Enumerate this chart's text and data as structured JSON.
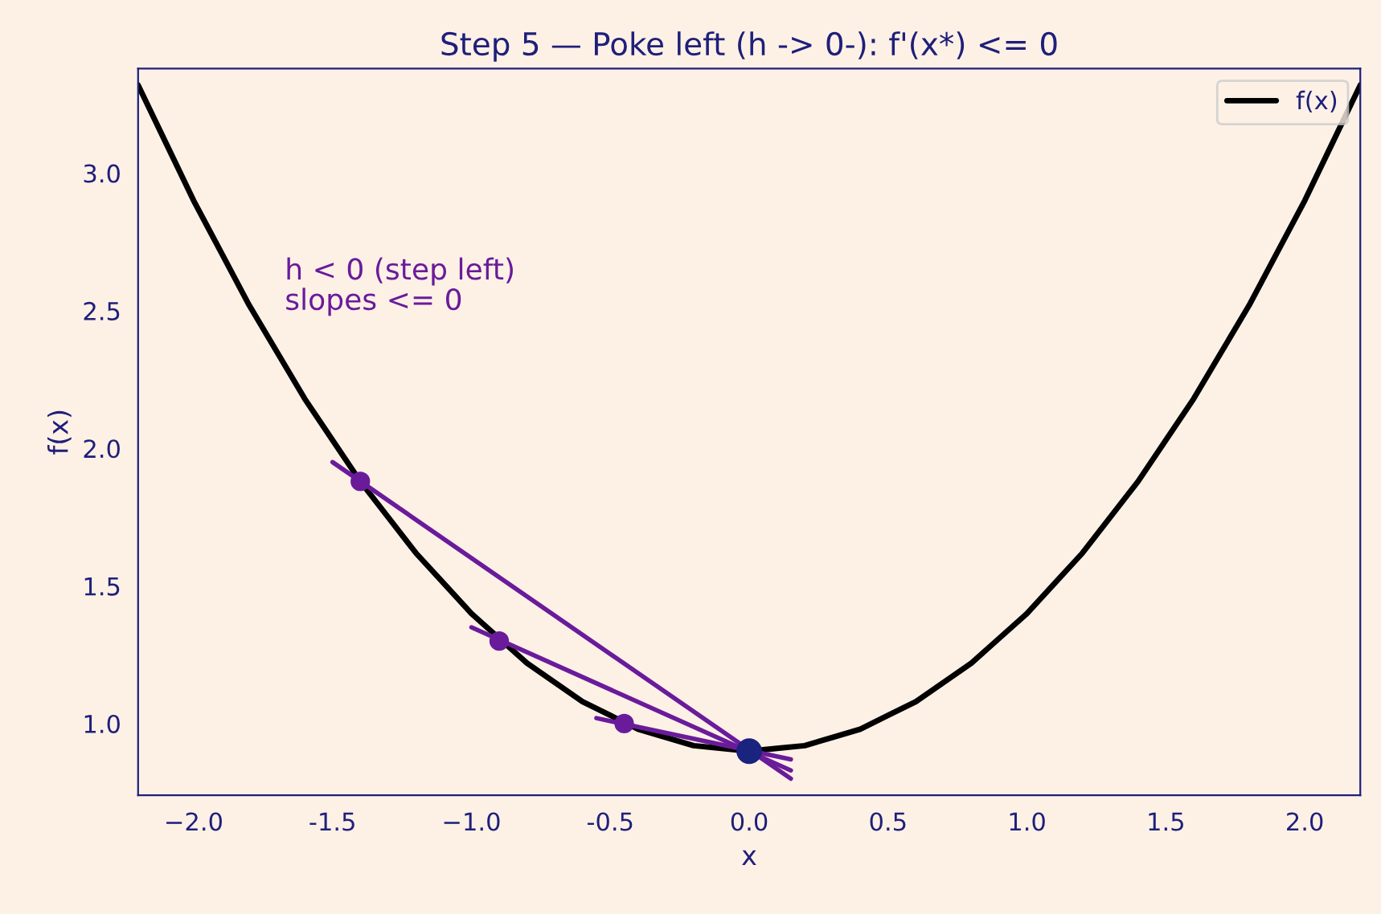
{
  "chart_data": {
    "type": "line",
    "title": "Step 5 — Poke left (h -> 0-): f'(x*) <= 0",
    "xlabel": "x",
    "ylabel": "f(x)",
    "series": [
      {
        "name": "f(x)",
        "color": "#000000",
        "x": [
          -2.2,
          -2.1,
          -2.0,
          -1.9,
          -1.8,
          -1.7,
          -1.6,
          -1.5,
          -1.4,
          -1.3,
          -1.2,
          -1.1,
          -1.0,
          -0.9,
          -0.8,
          -0.7,
          -0.6,
          -0.5,
          -0.4,
          -0.3,
          -0.2,
          -0.1,
          0.0,
          0.1,
          0.2,
          0.3,
          0.4,
          0.5,
          0.6,
          0.7,
          0.8,
          0.9,
          1.0,
          1.1,
          1.2,
          1.3,
          1.4,
          1.5,
          1.6,
          1.7,
          1.8,
          1.9,
          2.0,
          2.1,
          2.2
        ],
        "values": [
          3.32,
          3.11,
          2.9,
          2.71,
          2.52,
          2.35,
          2.18,
          2.03,
          1.88,
          1.75,
          1.62,
          1.51,
          1.4,
          1.31,
          1.22,
          1.15,
          1.08,
          1.03,
          0.98,
          0.95,
          0.92,
          0.91,
          0.9,
          0.91,
          0.92,
          0.95,
          0.98,
          1.03,
          1.08,
          1.15,
          1.22,
          1.31,
          1.4,
          1.51,
          1.62,
          1.75,
          1.88,
          2.03,
          2.18,
          2.35,
          2.52,
          2.71,
          2.9,
          3.11,
          3.32
        ]
      },
      {
        "type": "line",
        "color": "#6a1b9a",
        "x": [
          -1.5,
          0.15
        ],
        "values": [
          1.95,
          0.8
        ]
      },
      {
        "type": "line",
        "color": "#6a1b9a",
        "x": [
          -1.0,
          0.15
        ],
        "values": [
          1.35,
          0.83
        ]
      },
      {
        "type": "line",
        "color": "#6a1b9a",
        "x": [
          -0.55,
          0.15
        ],
        "values": [
          1.02,
          0.87
        ]
      },
      {
        "type": "scatter",
        "color": "#6a1b9a",
        "x": [
          -1.4,
          -0.9,
          -0.45
        ],
        "values": [
          1.88,
          1.3,
          1.0
        ]
      },
      {
        "type": "scatter",
        "color": "#1a237e",
        "x": [
          0.0
        ],
        "values": [
          0.9
        ]
      }
    ],
    "annotations": [
      "h < 0 (step left)\nslopes <= 0"
    ],
    "xlim": [
      -2.2,
      2.2
    ],
    "ylim": [
      0.74,
      3.38
    ],
    "xticks": [
      {
        "value": -2,
        "label": "−2.0"
      },
      -1.5,
      {
        "value": -1,
        "label": "−1.0"
      },
      -0.5,
      {
        "value": 0,
        "label": "0.0"
      },
      0.5,
      {
        "value": 1,
        "label": "1.0"
      },
      1.5,
      {
        "value": 2,
        "label": "2.0"
      }
    ],
    "yticks": [
      {
        "value": 1,
        "label": "1.0"
      },
      1.5,
      {
        "value": 2,
        "label": "2.0"
      },
      2.5,
      {
        "value": 3,
        "label": "3.0"
      }
    ],
    "legend": "top right",
    "grid": false
  }
}
